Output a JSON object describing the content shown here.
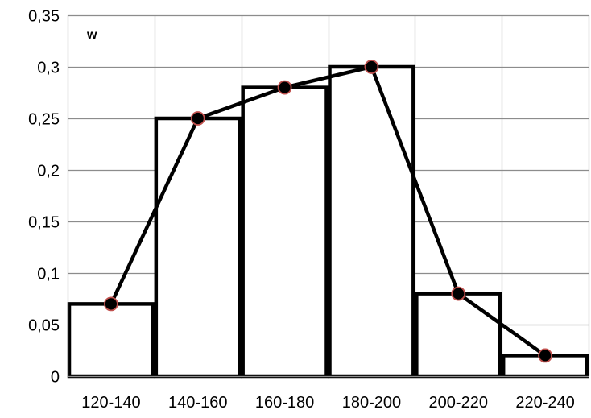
{
  "chart_data": {
    "type": "bar",
    "subtype": "histogram-with-polygon",
    "categories": [
      "120-140",
      "140-160",
      "160-180",
      "180-200",
      "200-220",
      "220-240"
    ],
    "values": [
      0.07,
      0.25,
      0.28,
      0.3,
      0.08,
      0.02
    ],
    "ylabel": "w",
    "xlabel": "",
    "title": "",
    "ylim": [
      0,
      0.35
    ],
    "yticks": [
      "0",
      "0,05",
      "0,1",
      "0,15",
      "0,2",
      "0,25",
      "0,3",
      "0,35"
    ],
    "grid": true,
    "legend": "none",
    "colors": {
      "background": "#ffffff",
      "grid": "#8c8c8c",
      "bar_stroke": "#000000",
      "bar_fill": "#ffffff",
      "polygon": "#000000",
      "marker_fill": "#000000",
      "marker_stroke": "#c0504d"
    }
  }
}
